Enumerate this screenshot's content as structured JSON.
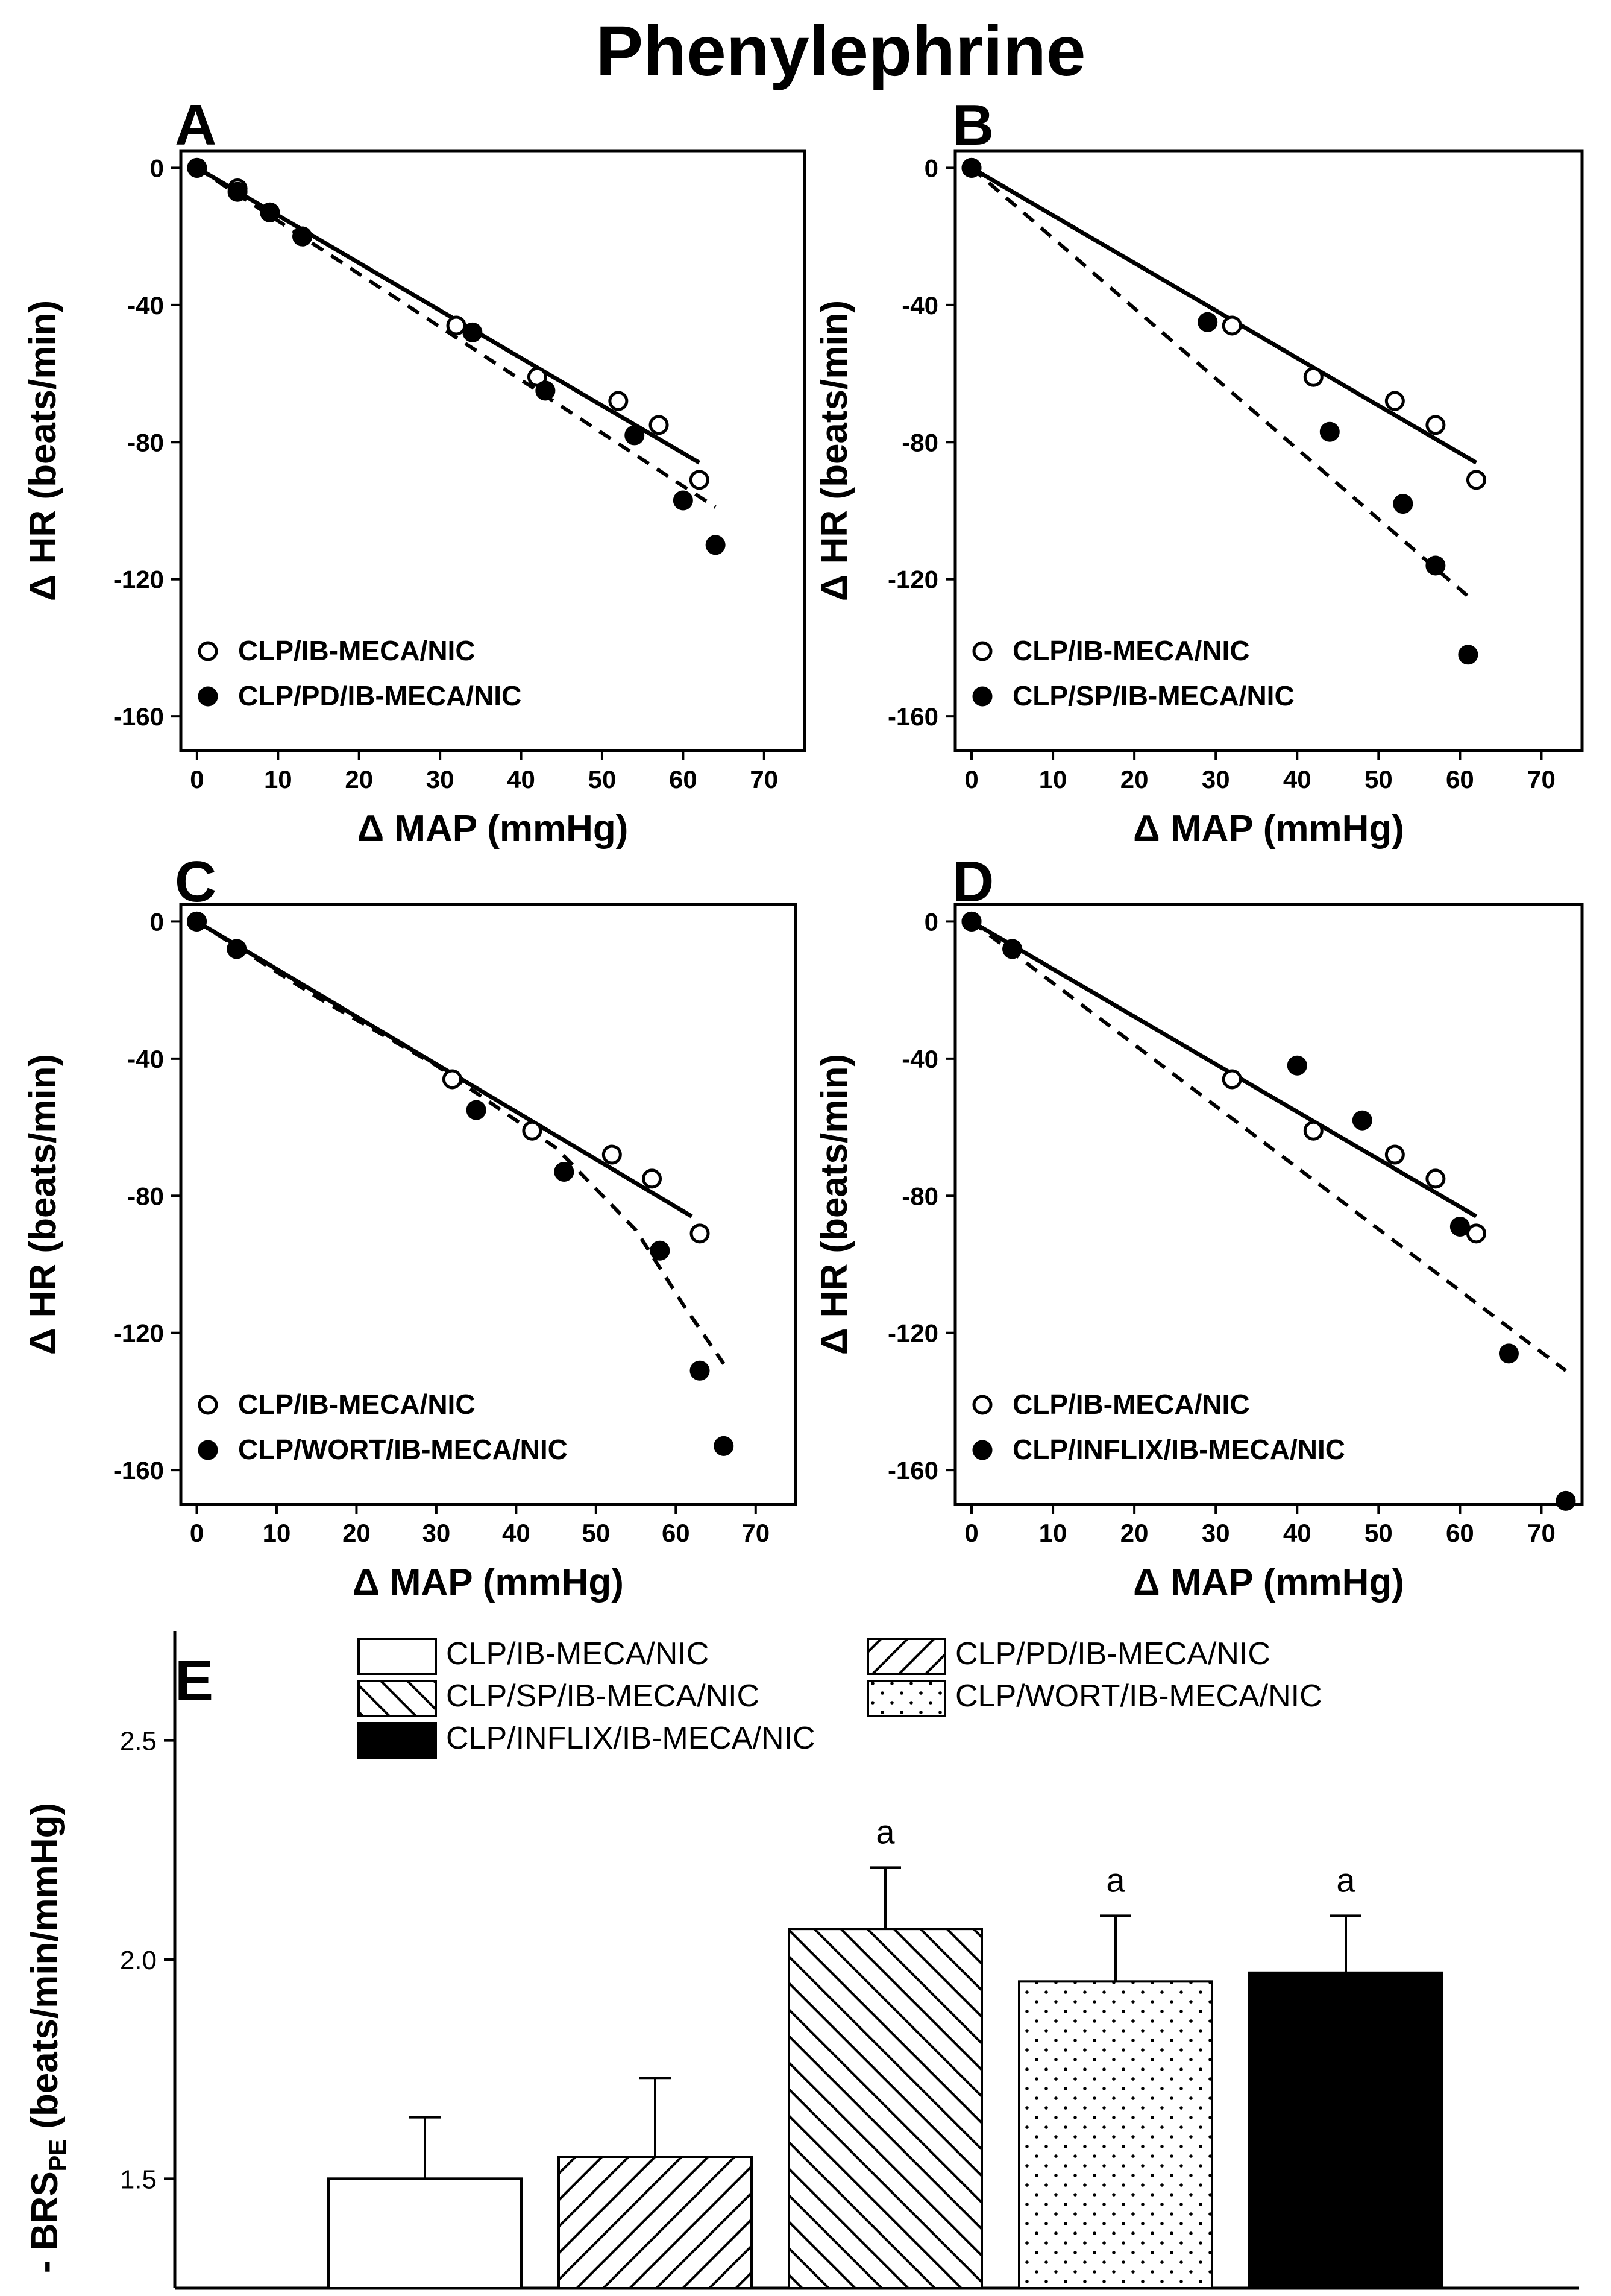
{
  "figure": {
    "title": "Phenylephrine"
  },
  "chart_data": [
    {
      "id": "A",
      "type": "scatter",
      "panel_label": "A",
      "xlabel": "Δ MAP (mmHg)",
      "ylabel": "Δ HR (beats/min)",
      "xlim": [
        -2,
        75
      ],
      "ylim": [
        -170,
        5
      ],
      "xticks": [
        0,
        10,
        20,
        30,
        40,
        50,
        60,
        70
      ],
      "yticks": [
        0,
        -40,
        -80,
        -120,
        -160
      ],
      "legend_position": "bottom-left",
      "series": [
        {
          "name": "CLP/IB-MECA/NIC",
          "marker": "open",
          "points": [
            [
              0,
              0
            ],
            [
              5,
              -6
            ],
            [
              9,
              -13
            ],
            [
              13,
              -20
            ],
            [
              32,
              -46
            ],
            [
              42,
              -61
            ],
            [
              52,
              -68
            ],
            [
              57,
              -75
            ],
            [
              62,
              -91
            ]
          ],
          "fit": {
            "style": "solid",
            "from": [
              0,
              0
            ],
            "to": [
              62,
              -86
            ]
          }
        },
        {
          "name": "CLP/PD/IB-MECA/NIC",
          "marker": "filled",
          "points": [
            [
              0,
              0
            ],
            [
              5,
              -7
            ],
            [
              9,
              -13
            ],
            [
              13,
              -20
            ],
            [
              34,
              -48
            ],
            [
              43,
              -65
            ],
            [
              54,
              -78
            ],
            [
              60,
              -97
            ],
            [
              64,
              -110
            ]
          ],
          "fit": {
            "style": "dashed",
            "from": [
              0,
              0
            ],
            "to": [
              64,
              -99
            ]
          }
        }
      ]
    },
    {
      "id": "B",
      "type": "scatter",
      "panel_label": "B",
      "xlabel": "Δ MAP (mmHg)",
      "ylabel": "Δ HR (beats/min)",
      "xlim": [
        -2,
        75
      ],
      "ylim": [
        -170,
        5
      ],
      "xticks": [
        0,
        10,
        20,
        30,
        40,
        50,
        60,
        70
      ],
      "yticks": [
        0,
        -40,
        -80,
        -120,
        -160
      ],
      "legend_position": "bottom-left",
      "series": [
        {
          "name": "CLP/IB-MECA/NIC",
          "marker": "open",
          "points": [
            [
              0,
              0
            ],
            [
              32,
              -46
            ],
            [
              42,
              -61
            ],
            [
              52,
              -68
            ],
            [
              57,
              -75
            ],
            [
              62,
              -91
            ]
          ],
          "fit": {
            "style": "solid",
            "from": [
              0,
              0
            ],
            "to": [
              62,
              -86
            ]
          }
        },
        {
          "name": "CLP/SP/IB-MECA/NIC",
          "marker": "filled",
          "points": [
            [
              0,
              0
            ],
            [
              29,
              -45
            ],
            [
              44,
              -77
            ],
            [
              53,
              -98
            ],
            [
              57,
              -116
            ],
            [
              61,
              -142
            ]
          ],
          "fit": {
            "style": "dashed",
            "from": [
              0,
              0
            ],
            "to": [
              61,
              -125
            ]
          }
        }
      ]
    },
    {
      "id": "C",
      "type": "scatter",
      "panel_label": "C",
      "xlabel": "Δ MAP (mmHg)",
      "ylabel": "Δ HR (beats/min)",
      "xlim": [
        -2,
        75
      ],
      "ylim": [
        -170,
        5
      ],
      "xticks": [
        0,
        10,
        20,
        30,
        40,
        50,
        60,
        70
      ],
      "yticks": [
        0,
        -40,
        -80,
        -120,
        -160
      ],
      "legend_position": "bottom-left",
      "series": [
        {
          "name": "CLP/IB-MECA/NIC",
          "marker": "open",
          "points": [
            [
              0,
              0
            ],
            [
              32,
              -46
            ],
            [
              42,
              -61
            ],
            [
              52,
              -68
            ],
            [
              57,
              -75
            ],
            [
              63,
              -91
            ]
          ],
          "fit": {
            "style": "solid",
            "from": [
              0,
              0
            ],
            "to": [
              62,
              -86
            ]
          }
        },
        {
          "name": "CLP/WORT/IB-MECA/NIC",
          "marker": "filled",
          "points": [
            [
              0,
              0
            ],
            [
              5,
              -8
            ],
            [
              35,
              -55
            ],
            [
              46,
              -73
            ],
            [
              58,
              -96
            ],
            [
              63,
              -131
            ],
            [
              66,
              -153
            ]
          ],
          "fit": {
            "style": "dashed",
            "from": [
              0,
              0
            ],
            "to": [
              66,
              -129
            ],
            "curve": [
              [
                0,
                0
              ],
              [
                15,
                -22
              ],
              [
                30,
                -42
              ],
              [
                45,
                -66
              ],
              [
                55,
                -90
              ],
              [
                61,
                -112
              ],
              [
                66,
                -129
              ]
            ]
          }
        }
      ]
    },
    {
      "id": "D",
      "type": "scatter",
      "panel_label": "D",
      "xlabel": "Δ MAP (mmHg)",
      "ylabel": "Δ HR (beats/min)",
      "xlim": [
        -2,
        75
      ],
      "ylim": [
        -170,
        5
      ],
      "xticks": [
        0,
        10,
        20,
        30,
        40,
        50,
        60,
        70
      ],
      "yticks": [
        0,
        -40,
        -80,
        -120,
        -160
      ],
      "legend_position": "bottom-left",
      "series": [
        {
          "name": "CLP/IB-MECA/NIC",
          "marker": "open",
          "points": [
            [
              0,
              0
            ],
            [
              32,
              -46
            ],
            [
              42,
              -61
            ],
            [
              52,
              -68
            ],
            [
              57,
              -75
            ],
            [
              62,
              -91
            ]
          ],
          "fit": {
            "style": "solid",
            "from": [
              0,
              0
            ],
            "to": [
              62,
              -86
            ]
          }
        },
        {
          "name": "CLP/INFLIX/IB-MECA/NIC",
          "marker": "filled",
          "points": [
            [
              0,
              0
            ],
            [
              5,
              -8
            ],
            [
              40,
              -42
            ],
            [
              48,
              -58
            ],
            [
              60,
              -89
            ],
            [
              66,
              -126
            ],
            [
              73,
              -169
            ]
          ],
          "fit": {
            "style": "dashed",
            "from": [
              0,
              0
            ],
            "to": [
              73,
              -131
            ]
          }
        }
      ]
    },
    {
      "id": "E",
      "type": "bar",
      "panel_label": "E",
      "ylabel": "- BRS",
      "ylabel_subscript": "PE",
      "ylabel_units": "(beats/min/mmHg)",
      "ylim": [
        1.25,
        2.75
      ],
      "yticks": [
        1.5,
        2.0,
        2.5
      ],
      "ytick_labels": [
        "1.5",
        "2.0",
        "2.5"
      ],
      "categories": [
        "CLP/IB-MECA/NIC",
        "CLP/PD/IB-MECA/NIC",
        "CLP/SP/IB-MECA/NIC",
        "CLP/WORT/IB-MECA/NIC",
        "CLP/INFLIX/IB-MECA/NIC"
      ],
      "values": [
        1.5,
        1.55,
        2.07,
        1.95,
        1.97
      ],
      "errors": [
        0.14,
        0.18,
        0.14,
        0.15,
        0.13
      ],
      "annotations": [
        "",
        "",
        "a",
        "a",
        "a"
      ],
      "patterns": [
        "open",
        "hatch-forward",
        "hatch-back",
        "dots",
        "solid"
      ],
      "legend_position": "top"
    }
  ]
}
